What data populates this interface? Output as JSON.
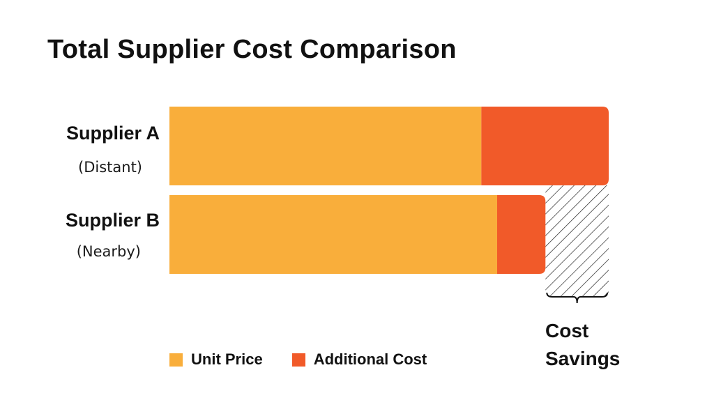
{
  "chart_data": {
    "type": "bar",
    "orientation": "horizontal",
    "stacked": true,
    "title": "Total Supplier Cost Comparison",
    "categories": [
      "Supplier A",
      "Supplier B"
    ],
    "category_subtitles": [
      "(Distant)",
      "(Nearby)"
    ],
    "series": [
      {
        "name": "Unit Price",
        "values": [
          71,
          74.6
        ],
        "color": "#F9AE3B"
      },
      {
        "name": "Additional Cost",
        "values": [
          29,
          11
        ],
        "color": "#F15A29"
      }
    ],
    "xlim": [
      0,
      100
    ],
    "grid": false,
    "legend_position": "bottom",
    "annotations": [
      {
        "label": "Cost Savings",
        "from": 85.6,
        "to": 100,
        "style": "hatched"
      }
    ]
  }
}
